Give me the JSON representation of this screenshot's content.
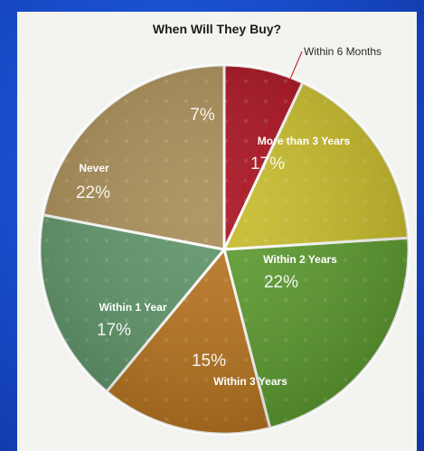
{
  "chart_data": {
    "type": "pie",
    "title": "When Will They Buy?",
    "slices": [
      {
        "label": "Within 6 Months",
        "value": 7,
        "value_label": "7%",
        "color": "#a8101e"
      },
      {
        "label": "More than 3 Years",
        "value": 17,
        "value_label": "17%",
        "color": "#c9bd2a"
      },
      {
        "label": "Within 2 Years",
        "value": 22,
        "value_label": "22%",
        "color": "#5c9b2e"
      },
      {
        "label": "Within 3 Years",
        "value": 15,
        "value_label": "15%",
        "color": "#b8741e"
      },
      {
        "label": "Within 1 Year",
        "value": 17,
        "value_label": "17%",
        "color": "#5d9468"
      },
      {
        "label": "Never",
        "value": 22,
        "value_label": "22%",
        "color": "#a88c55"
      }
    ],
    "start": "top",
    "direction": "clockwise"
  }
}
